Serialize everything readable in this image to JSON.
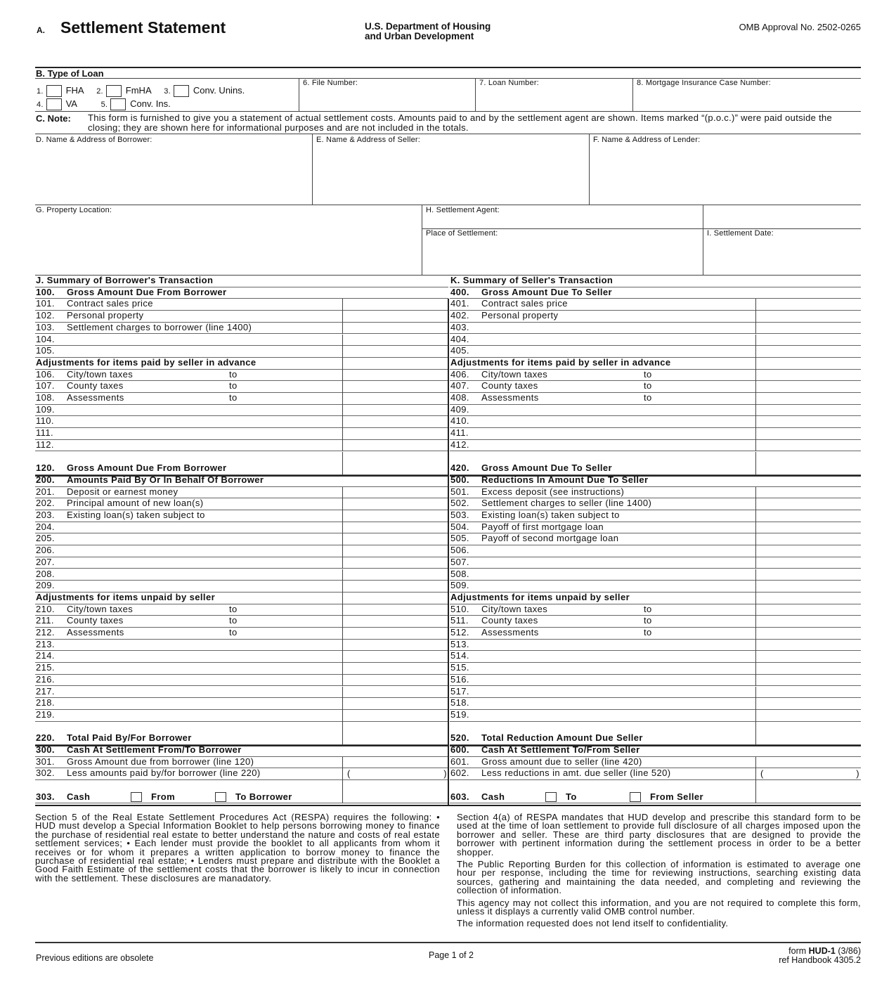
{
  "header": {
    "section_letter": "A.",
    "title": "Settlement Statement",
    "agency_line1": "U.S. Department of Housing",
    "agency_line2": "and Urban Development",
    "omb": "OMB Approval No. 2502-0265"
  },
  "loan_type": {
    "label": "B.  Type of Loan",
    "options": [
      {
        "num": "1.",
        "label": "FHA"
      },
      {
        "num": "2.",
        "label": "FmHA"
      },
      {
        "num": "3.",
        "label": "Conv. Unins."
      },
      {
        "num": "4.",
        "label": "VA"
      },
      {
        "num": "5.",
        "label": "Conv. Ins."
      }
    ],
    "file_number": "6.  File Number:",
    "loan_number": "7.  Loan Number:",
    "mortgage_case": "8.  Mortgage Insurance Case Number:"
  },
  "note": {
    "label": "C. Note:",
    "text": "This form is furnished to give you a statement of actual settlement costs. Amounts paid to and by the settlement agent are shown. Items marked “(p.o.c.)” were paid outside the closing; they are shown here for informational purposes and are not included in the totals."
  },
  "parties": {
    "borrower": "D. Name & Address of Borrower:",
    "seller": "E. Name & Address of Seller:",
    "lender": "F. Name & Address of Lender:",
    "property": "G. Property Location:",
    "agent": "H. Settlement Agent:",
    "place": "Place of Settlement:",
    "date": "I.   Settlement Date:"
  },
  "borrower_summary": [
    {
      "t": "title",
      "label": "J.  Summary of Borrower's Transaction"
    },
    {
      "t": "head",
      "num": "100.",
      "label": "Gross Amount Due From Borrower"
    },
    {
      "num": "101.",
      "label": "Contract sales price"
    },
    {
      "num": "102.",
      "label": "Personal property"
    },
    {
      "num": "103.",
      "label": "Settlement charges to borrower (line 1400)"
    },
    {
      "num": "104.",
      "label": ""
    },
    {
      "num": "105.",
      "label": ""
    },
    {
      "t": "sub",
      "label": "Adjustments for items paid by seller in advance"
    },
    {
      "num": "106.",
      "label": "City/town taxes",
      "to": "to"
    },
    {
      "num": "107.",
      "label": "County taxes",
      "to": "to"
    },
    {
      "num": "108.",
      "label": "Assessments",
      "to": "to"
    },
    {
      "num": "109.",
      "label": ""
    },
    {
      "num": "110.",
      "label": ""
    },
    {
      "num": "111.",
      "label": ""
    },
    {
      "num": "112.",
      "label": ""
    },
    {
      "t": "total",
      "num": "120.",
      "label": "Gross Amount Due From Borrower"
    },
    {
      "t": "head",
      "num": "200.",
      "label": "Amounts Paid By Or In Behalf Of Borrower"
    },
    {
      "num": "201.",
      "label": "Deposit or earnest money"
    },
    {
      "num": "202.",
      "label": "Principal amount of new loan(s)"
    },
    {
      "num": "203.",
      "label": "Existing loan(s) taken subject to"
    },
    {
      "num": "204.",
      "label": ""
    },
    {
      "num": "205.",
      "label": ""
    },
    {
      "num": "206.",
      "label": ""
    },
    {
      "num": "207.",
      "label": ""
    },
    {
      "num": "208.",
      "label": ""
    },
    {
      "num": "209.",
      "label": ""
    },
    {
      "t": "sub",
      "label": "Adjustments for items unpaid by seller"
    },
    {
      "num": "210.",
      "label": "City/town taxes",
      "to": "to"
    },
    {
      "num": "211.",
      "label": "County taxes",
      "to": "to"
    },
    {
      "num": "212.",
      "label": "Assessments",
      "to": "to"
    },
    {
      "num": "213.",
      "label": ""
    },
    {
      "num": "214.",
      "label": ""
    },
    {
      "num": "215.",
      "label": ""
    },
    {
      "num": "216.",
      "label": ""
    },
    {
      "num": "217.",
      "label": ""
    },
    {
      "num": "218.",
      "label": ""
    },
    {
      "num": "219.",
      "label": ""
    },
    {
      "t": "total",
      "num": "220.",
      "label": "Total Paid By/For Borrower"
    },
    {
      "t": "head",
      "num": "300.",
      "label": "Cash At Settlement From/To Borrower"
    },
    {
      "num": "301.",
      "label": "Gross Amount due from borrower (line 120)"
    },
    {
      "num": "302.",
      "label": "Less amounts paid by/for borrower (line 220)",
      "paren": true
    },
    {
      "t": "cash",
      "num": "303.",
      "label": "Cash",
      "opt1": "From",
      "opt2": "To Borrower"
    }
  ],
  "seller_summary": [
    {
      "t": "title",
      "label": "K.  Summary of Seller's Transaction"
    },
    {
      "t": "head",
      "num": "400.",
      "label": "Gross Amount Due To Seller"
    },
    {
      "num": "401.",
      "label": "Contract sales price"
    },
    {
      "num": "402.",
      "label": "Personal property"
    },
    {
      "num": "403.",
      "label": ""
    },
    {
      "num": "404.",
      "label": ""
    },
    {
      "num": "405.",
      "label": ""
    },
    {
      "t": "sub",
      "label": "Adjustments for items paid by seller in advance"
    },
    {
      "num": "406.",
      "label": "City/town taxes",
      "to": "to"
    },
    {
      "num": "407.",
      "label": "County taxes",
      "to": "to"
    },
    {
      "num": "408.",
      "label": "Assessments",
      "to": "to"
    },
    {
      "num": "409.",
      "label": ""
    },
    {
      "num": "410.",
      "label": ""
    },
    {
      "num": "411.",
      "label": ""
    },
    {
      "num": "412.",
      "label": ""
    },
    {
      "t": "total",
      "num": "420.",
      "label": "Gross Amount Due To Seller"
    },
    {
      "t": "head",
      "num": "500.",
      "label": "Reductions In Amount Due To Seller"
    },
    {
      "num": "501.",
      "label": "Excess deposit (see instructions)"
    },
    {
      "num": "502.",
      "label": "Settlement charges to seller (line 1400)"
    },
    {
      "num": "503.",
      "label": "Existing loan(s) taken subject to"
    },
    {
      "num": "504.",
      "label": "Payoff of first mortgage loan"
    },
    {
      "num": "505.",
      "label": "Payoff of second mortgage loan"
    },
    {
      "num": "506.",
      "label": ""
    },
    {
      "num": "507.",
      "label": ""
    },
    {
      "num": "508.",
      "label": ""
    },
    {
      "num": "509.",
      "label": ""
    },
    {
      "t": "sub",
      "label": "Adjustments for items unpaid by seller"
    },
    {
      "num": "510.",
      "label": "City/town taxes",
      "to": "to"
    },
    {
      "num": "511.",
      "label": "County taxes",
      "to": "to"
    },
    {
      "num": "512.",
      "label": "Assessments",
      "to": "to"
    },
    {
      "num": "513.",
      "label": ""
    },
    {
      "num": "514.",
      "label": ""
    },
    {
      "num": "515.",
      "label": ""
    },
    {
      "num": "516.",
      "label": ""
    },
    {
      "num": "517.",
      "label": ""
    },
    {
      "num": "518.",
      "label": ""
    },
    {
      "num": "519.",
      "label": ""
    },
    {
      "t": "total",
      "num": "520.",
      "label": "Total Reduction Amount Due Seller"
    },
    {
      "t": "head",
      "num": "600.",
      "label": "Cash At Settlement To/From Seller"
    },
    {
      "num": "601.",
      "label": "Gross amount due to seller (line 420)"
    },
    {
      "num": "602.",
      "label": "Less reductions in amt. due seller (line 520)",
      "paren": true
    },
    {
      "t": "cash",
      "num": "603.",
      "label": "Cash",
      "opt1": "To",
      "opt2": "From Seller"
    }
  ],
  "disclosures": {
    "left": [
      "Section 5 of the Real Estate Settlement Procedures Act (RESPA) requires the following: • HUD must develop a Special Information Booklet to help persons borrowing money to finance the purchase of residential real estate to better understand the nature and costs of real estate settlement services; • Each lender must provide the booklet to all applicants from whom it receives or for whom it prepares a written application to borrow money to finance the purchase of residential real estate; • Lenders must prepare and distribute with the Booklet a Good Faith Estimate of the settlement costs that the borrower is likely to incur in connection with the settlement.  These disclosures are manadatory."
    ],
    "right": [
      "Section 4(a) of RESPA mandates that HUD develop and prescribe this standard form to be used at the time of loan settlement to provide full disclosure of all charges imposed upon the borrower and seller.  These are third party disclosures that are designed to provide the  borrower with pertinent information during the settlement process in order to be a better shopper.",
      "The Public Reporting Burden for this collection of information is estimated to average one hour per response, including the time for reviewing instructions, searching existing data sources, gathering and maintaining the data needed, and completing and reviewing the collection of information.",
      "This agency may not collect this information, and you are not required to complete this form, unless it displays a currently valid OMB control number.",
      "The information requested does not lend itself to confidentiality."
    ]
  },
  "footer": {
    "left": "Previous editions are obsolete",
    "center": "Page 1 of 2",
    "form_prefix": "form ",
    "form_id": "HUD-1",
    "form_date": " (3/86)",
    "handbook": "ref Handbook 4305.2"
  }
}
